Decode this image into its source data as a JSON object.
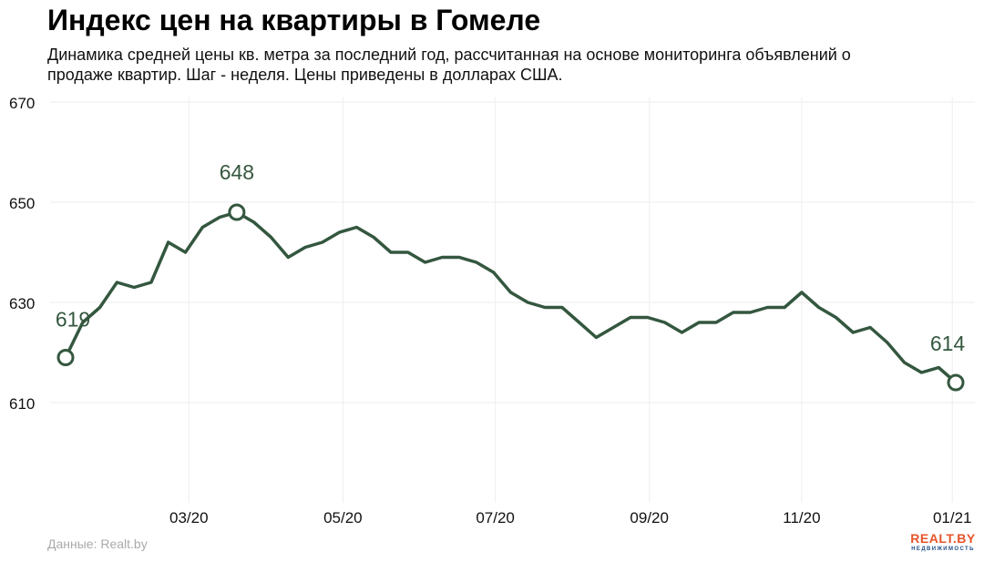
{
  "header": {
    "title": "Индекс цен на квартиры в Гомеле",
    "subtitle": "Динамика средней цены кв. метра за последний год, рассчитанная на основе мониторинга объявлений о продаже квартир. Шаг - неделя. Цены приведены в долларах США."
  },
  "footer": {
    "source": "Данные: Realt.by",
    "logo_text": "REALT.BY",
    "logo_subtext": "НЕДВИЖИМОСТЬ"
  },
  "colors": {
    "line": "#34573f",
    "grid": "#eeeeee",
    "axis_text": "#111111"
  },
  "chart_data": {
    "type": "line",
    "title": "Индекс цен на квартиры в Гомеле",
    "xlabel": "",
    "ylabel": "",
    "ylim": [
      590,
      670
    ],
    "yticks": [
      610,
      630,
      650,
      670
    ],
    "xticks": [
      {
        "label": "03/20",
        "index": 7.2
      },
      {
        "label": "05/20",
        "index": 16.2
      },
      {
        "label": "07/20",
        "index": 25.1
      },
      {
        "label": "09/20",
        "index": 34.1
      },
      {
        "label": "11/20",
        "index": 43.0
      },
      {
        "label": "01/21",
        "index": 51.8
      }
    ],
    "grid": true,
    "series": [
      {
        "name": "",
        "values": [
          619,
          626,
          629,
          634,
          633,
          634,
          642,
          640,
          645,
          647,
          648,
          646,
          643,
          639,
          641,
          642,
          644,
          645,
          643,
          640,
          640,
          638,
          639,
          639,
          638,
          636,
          632,
          630,
          629,
          629,
          626,
          623,
          625,
          627,
          627,
          626,
          624,
          626,
          626,
          628,
          628,
          629,
          629,
          632,
          629,
          627,
          624,
          625,
          622,
          618,
          616,
          617,
          614
        ]
      }
    ],
    "annotations": [
      {
        "index": 0,
        "value": 619,
        "label": "619"
      },
      {
        "index": 10,
        "value": 648,
        "label": "648"
      },
      {
        "index": 52,
        "value": 614,
        "label": "614"
      }
    ]
  }
}
